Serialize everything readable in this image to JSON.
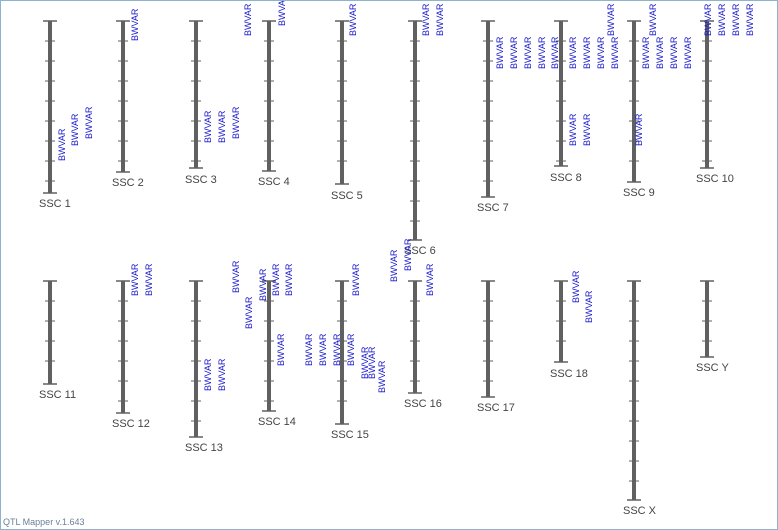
{
  "app": {
    "version_text": "QTL Mapper v.1.643"
  },
  "colors": {
    "chromosome": "#606060",
    "tick": "#606060",
    "qtl_label": "#1a1acc",
    "chr_label": "#444444"
  },
  "chromosomes": [
    {
      "name": "SSC 1",
      "qtl_count": 3
    },
    {
      "name": "SSC 2",
      "qtl_count": 1
    },
    {
      "name": "SSC 3",
      "qtl_count": 3
    },
    {
      "name": "SSC 4",
      "qtl_count": 2
    },
    {
      "name": "SSC 5",
      "qtl_count": 1
    },
    {
      "name": "SSC 6",
      "qtl_count": 2
    },
    {
      "name": "SSC 7",
      "qtl_count": 5
    },
    {
      "name": "SSC 8",
      "qtl_count": 7
    },
    {
      "name": "SSC 9",
      "qtl_count": 6
    },
    {
      "name": "SSC 10",
      "qtl_count": 4
    },
    {
      "name": "SSC 11",
      "qtl_count": 0
    },
    {
      "name": "SSC 12",
      "qtl_count": 2
    },
    {
      "name": "SSC 13",
      "qtl_count": 3
    },
    {
      "name": "SSC 14",
      "qtl_count": 5
    },
    {
      "name": "SSC 15",
      "qtl_count": 8
    },
    {
      "name": "SSC 16",
      "qtl_count": 3
    },
    {
      "name": "SSC 17",
      "qtl_count": 0
    },
    {
      "name": "SSC 18",
      "qtl_count": 2
    },
    {
      "name": "SSC X",
      "qtl_count": 0
    },
    {
      "name": "SSC Y",
      "qtl_count": 0
    }
  ],
  "qtl_trait": "BWVAR"
}
